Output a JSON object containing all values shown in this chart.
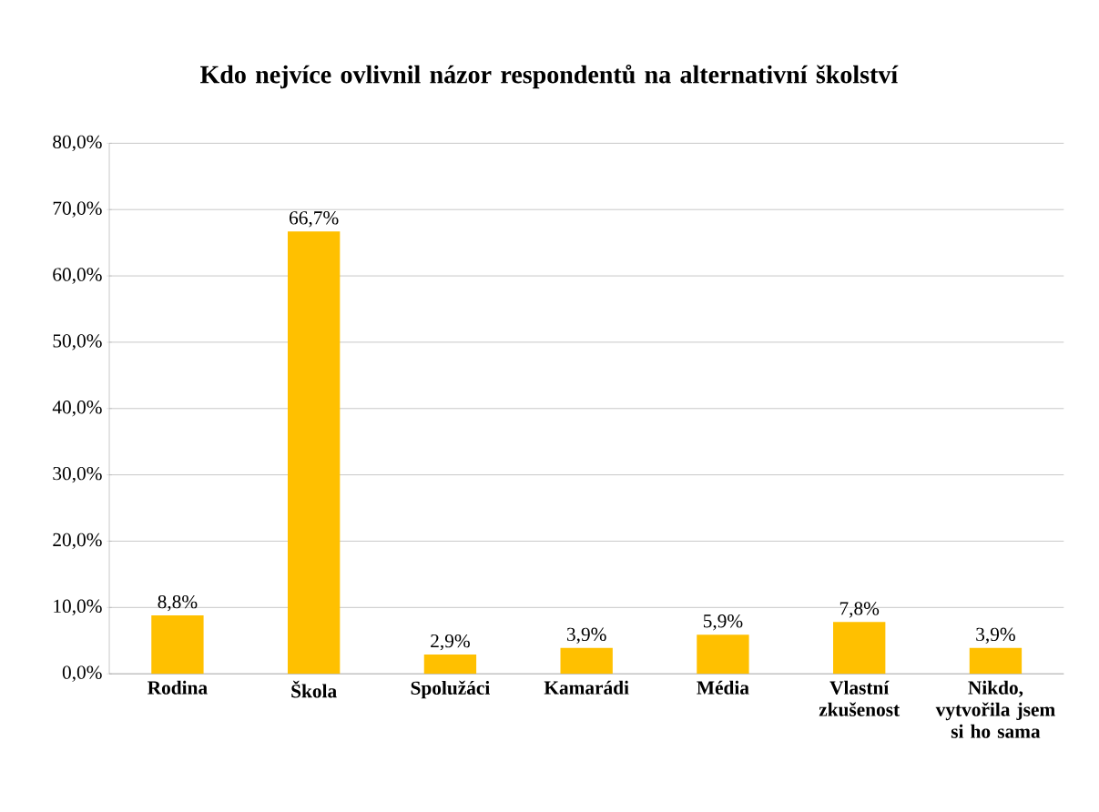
{
  "chart_data": {
    "type": "bar",
    "title": "Kdo nejvíce ovlivnil názor respondentů na alternativní školství",
    "categories": [
      "Rodina",
      "Škola",
      "Spolužáci",
      "Kamarádi",
      "Média",
      "Vlastní zkušenost",
      "Nikdo, vytvořila jsem si ho sama"
    ],
    "values": [
      8.8,
      66.7,
      2.9,
      3.9,
      5.9,
      7.8,
      3.9
    ],
    "value_labels": [
      "8,8%",
      "66,7%",
      "2,9%",
      "3,9%",
      "5,9%",
      "7,8%",
      "3,9%"
    ],
    "color": "#ffc000",
    "ylim": [
      0,
      80
    ],
    "yticks": [
      {
        "value": 0,
        "label": "0,0%"
      },
      {
        "value": 10,
        "label": "10,0%"
      },
      {
        "value": 20,
        "label": "20,0%"
      },
      {
        "value": 30,
        "label": "30,0%"
      },
      {
        "value": 40,
        "label": "40,0%"
      },
      {
        "value": 50,
        "label": "50,0%"
      },
      {
        "value": 60,
        "label": "60,0%"
      },
      {
        "value": 70,
        "label": "70,0%"
      },
      {
        "value": 80,
        "label": "80,0%"
      }
    ],
    "grid": "y"
  }
}
